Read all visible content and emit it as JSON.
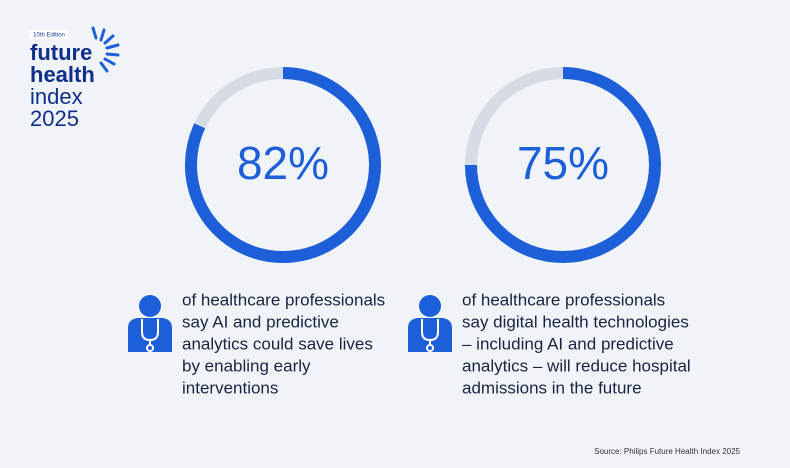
{
  "header": {
    "edition": "10th Edition",
    "line1": "future",
    "line2": "health",
    "line3": "index",
    "line4": "2025"
  },
  "chart_data": [
    {
      "type": "donut",
      "values": [
        82
      ],
      "value_labels": [
        "82%"
      ],
      "color": "#1d5fd8",
      "track_color": "#d7dbe4",
      "description": [
        "of healthcare professionals",
        "say AI and predictive",
        "analytics could save lives",
        "by enabling early",
        "interventions"
      ]
    },
    {
      "type": "donut",
      "values": [
        75
      ],
      "value_labels": [
        "75%"
      ],
      "color": "#1d5fd8",
      "track_color": "#d7dbe4",
      "description": [
        "of healthcare professionals",
        "say digital health technologies",
        "– including AI and predictive",
        "analytics – will reduce hospital",
        "admissions in the future"
      ]
    }
  ],
  "footer": {
    "source": "Source: Philips Future Health Index 2025"
  }
}
